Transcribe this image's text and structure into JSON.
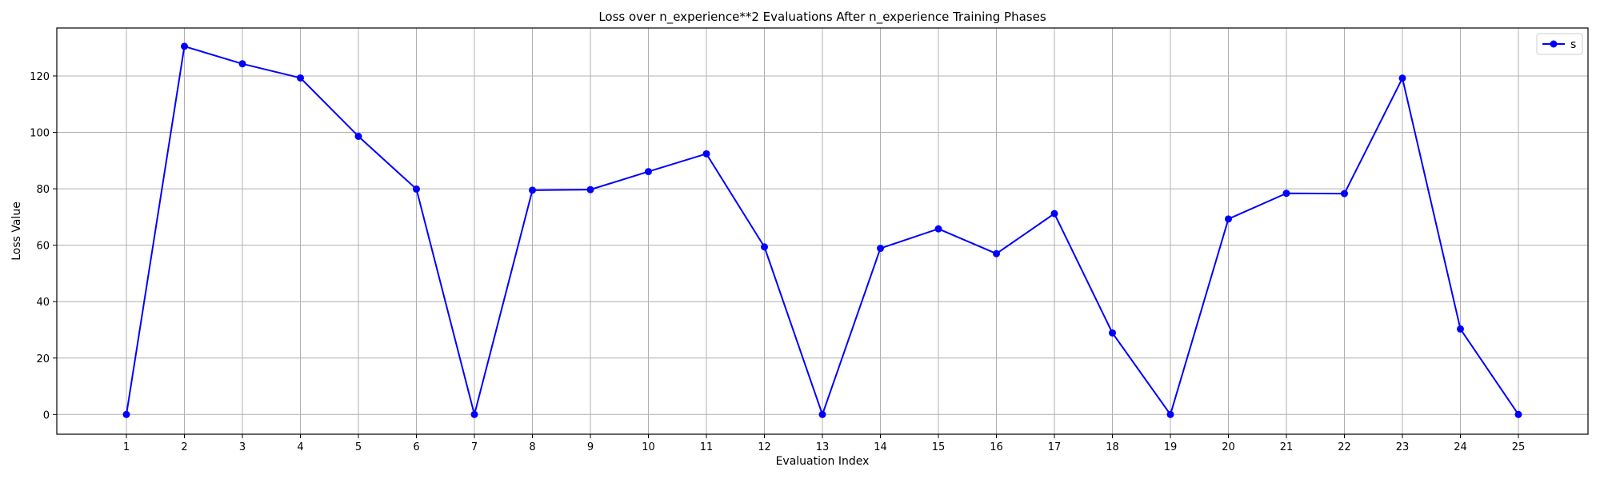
{
  "chart_data": {
    "type": "line",
    "title": "Loss over n_experience**2 Evaluations After n_experience Training Phases",
    "xlabel": "Evaluation Index",
    "ylabel": "Loss Value",
    "x": [
      1,
      2,
      3,
      4,
      5,
      6,
      7,
      8,
      9,
      10,
      11,
      12,
      13,
      14,
      15,
      16,
      17,
      18,
      19,
      20,
      21,
      22,
      23,
      24,
      25
    ],
    "xlim": [
      -0.2,
      26.2
    ],
    "ylim": [
      -7,
      137
    ],
    "yticks": [
      0,
      20,
      40,
      60,
      80,
      100,
      120
    ],
    "grid": true,
    "legend_position": "top-right",
    "series": [
      {
        "name": "s",
        "color": "#0000ff",
        "marker": "circle",
        "values": [
          0,
          130.5,
          124.3,
          119.3,
          98.6,
          79.9,
          0,
          79.5,
          79.7,
          86.1,
          92.4,
          59.4,
          0,
          58.9,
          65.8,
          57.0,
          71.2,
          28.9,
          0,
          69.3,
          78.4,
          78.3,
          119.2,
          30.3,
          0
        ]
      }
    ]
  }
}
